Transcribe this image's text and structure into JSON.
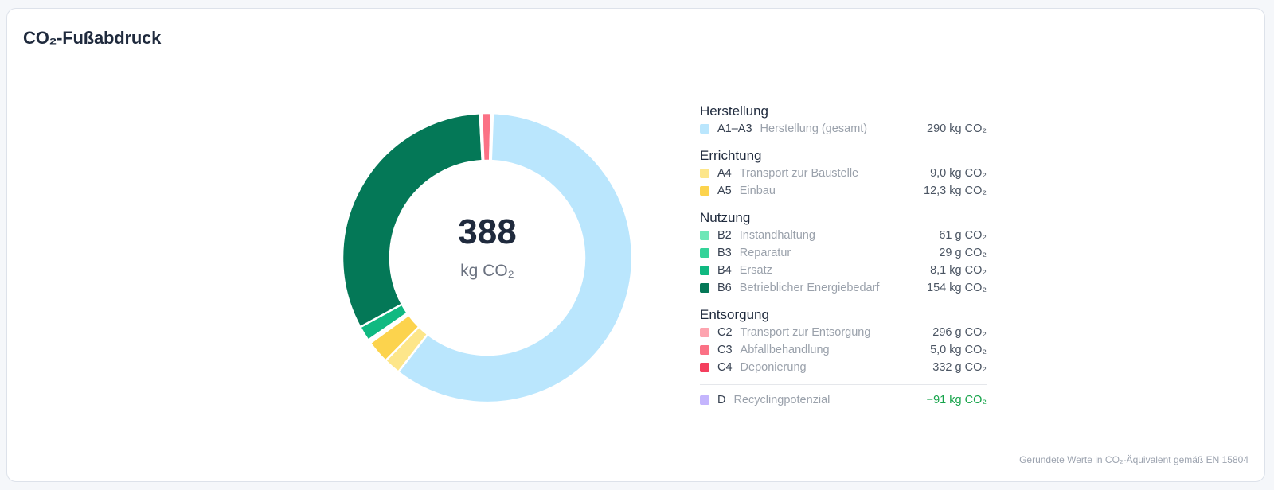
{
  "title": "CO₂-Fußabdruck",
  "center": {
    "total": "388",
    "unit": "kg CO₂"
  },
  "legend": {
    "groups": [
      {
        "title": "Herstellung",
        "items": [
          {
            "code": "A1–A3",
            "label": "Herstellung (gesamt)",
            "value": "290 kg CO₂",
            "color": "#bae6fd"
          }
        ]
      },
      {
        "title": "Errichtung",
        "items": [
          {
            "code": "A4",
            "label": "Transport zur Baustelle",
            "value": "9,0 kg CO₂",
            "color": "#fde68a"
          },
          {
            "code": "A5",
            "label": "Einbau",
            "value": "12,3 kg CO₂",
            "color": "#fcd34d"
          }
        ]
      },
      {
        "title": "Nutzung",
        "items": [
          {
            "code": "B2",
            "label": "Instandhaltung",
            "value": "61 g CO₂",
            "color": "#6ee7b7"
          },
          {
            "code": "B3",
            "label": "Reparatur",
            "value": "29 g CO₂",
            "color": "#34d399"
          },
          {
            "code": "B4",
            "label": "Ersatz",
            "value": "8,1 kg CO₂",
            "color": "#10b981"
          },
          {
            "code": "B6",
            "label": "Betrieblicher Energiebedarf",
            "value": "154 kg CO₂",
            "color": "#047857"
          }
        ]
      },
      {
        "title": "Entsorgung",
        "items": [
          {
            "code": "C2",
            "label": "Transport zur Entsorgung",
            "value": "296 g CO₂",
            "color": "#fda4af"
          },
          {
            "code": "C3",
            "label": "Abfallbehandlung",
            "value": "5,0 kg CO₂",
            "color": "#fb7185"
          },
          {
            "code": "C4",
            "label": "Deponierung",
            "value": "332 g CO₂",
            "color": "#f43f5e"
          }
        ]
      }
    ],
    "recycling": {
      "code": "D",
      "label": "Recyclingpotenzial",
      "value": "−91 kg CO₂",
      "color": "#c4b5fd",
      "value_color": "#16a34a"
    }
  },
  "footnote": "Gerundete Werte in CO₂-Äquivalent gemäß EN 15804",
  "chart_data": {
    "type": "pie",
    "unit": "kg CO₂",
    "total": 388,
    "segments": [
      {
        "code": "A1–A3",
        "value": 290,
        "color": "#bae6fd"
      },
      {
        "code": "A4",
        "value": 9.0,
        "color": "#fde68a"
      },
      {
        "code": "A5",
        "value": 12.3,
        "color": "#fcd34d"
      },
      {
        "code": "B2",
        "value": 0.061,
        "color": "#6ee7b7"
      },
      {
        "code": "B3",
        "value": 0.029,
        "color": "#34d399"
      },
      {
        "code": "B4",
        "value": 8.1,
        "color": "#10b981"
      },
      {
        "code": "B6",
        "value": 154,
        "color": "#047857"
      },
      {
        "code": "C2",
        "value": 0.296,
        "color": "#fda4af"
      },
      {
        "code": "C3",
        "value": 5.0,
        "color": "#fb7185"
      },
      {
        "code": "C4",
        "value": 0.332,
        "color": "#f43f5e"
      }
    ]
  }
}
